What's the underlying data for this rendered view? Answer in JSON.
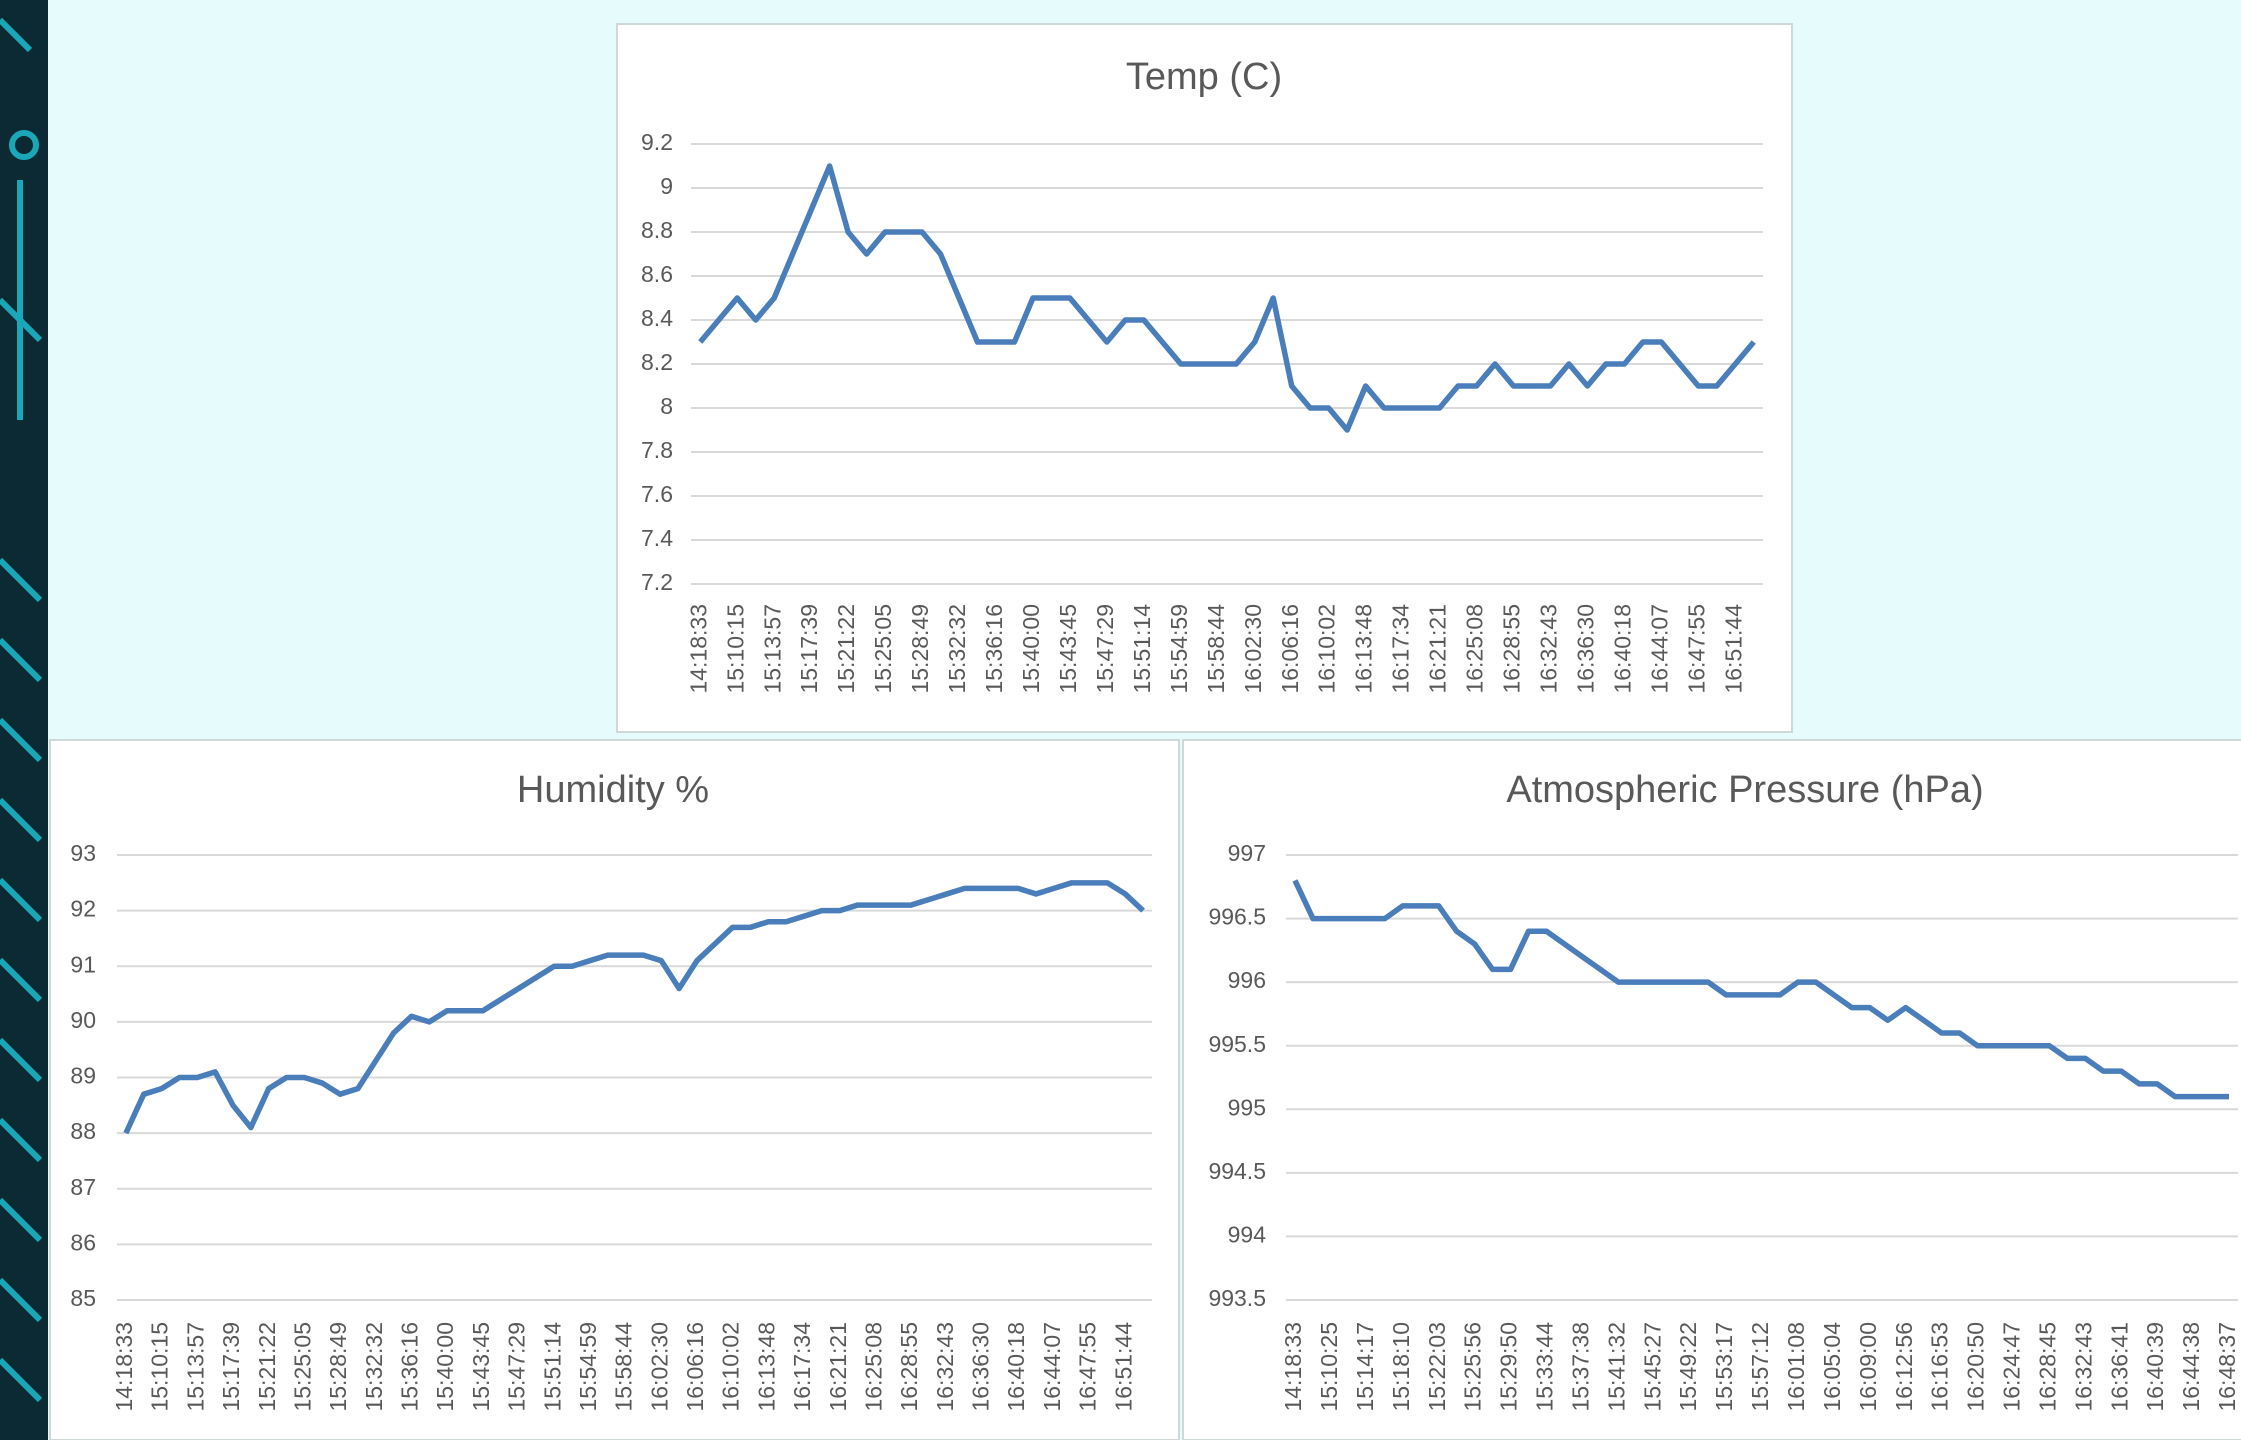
{
  "chart_data": [
    {
      "type": "line",
      "title": "Temp (C)",
      "color": "#4a7ebb",
      "grid": true,
      "categories": [
        "14:18:33",
        null,
        "15:10:15",
        null,
        "15:13:57",
        null,
        "15:17:39",
        null,
        "15:21:22",
        null,
        "15:25:05",
        null,
        "15:28:49",
        null,
        "15:32:32",
        null,
        "15:36:16",
        null,
        "15:40:00",
        null,
        "15:43:45",
        null,
        "15:47:29",
        null,
        "15:51:14",
        null,
        "15:54:59",
        null,
        "15:58:44",
        null,
        "16:02:30",
        null,
        "16:06:16",
        null,
        "16:10:02",
        null,
        "16:13:48",
        null,
        "16:17:34",
        null,
        "16:21:21",
        null,
        "16:25:08",
        null,
        "16:28:55",
        null,
        "16:32:43",
        null,
        "16:36:30",
        null,
        "16:40:18",
        null,
        "16:44:07",
        null,
        "16:47:55",
        null,
        "16:51:44",
        null
      ],
      "values": [
        8.3,
        8.4,
        8.5,
        8.4,
        8.5,
        8.7,
        8.9,
        9.1,
        8.8,
        8.7,
        8.8,
        8.8,
        8.8,
        8.7,
        8.5,
        8.3,
        8.3,
        8.3,
        8.5,
        8.5,
        8.5,
        8.4,
        8.3,
        8.4,
        8.4,
        8.3,
        8.2,
        8.2,
        8.2,
        8.2,
        8.3,
        8.5,
        8.1,
        8,
        8,
        7.9,
        8.1,
        8,
        8,
        8,
        8,
        8.1,
        8.1,
        8.2,
        8.1,
        8.1,
        8.1,
        8.2,
        8.1,
        8.2,
        8.2,
        8.3,
        8.3,
        8.2,
        8.1,
        8.1,
        8.2,
        8.3
      ],
      "ylim": [
        7.2,
        9.2
      ],
      "yticks": [
        7.2,
        7.4,
        7.6,
        7.8,
        8,
        8.2,
        8.4,
        8.6,
        8.8,
        9,
        9.2
      ]
    },
    {
      "type": "line",
      "title": "Humidity %",
      "color": "#4a7ebb",
      "grid": true,
      "categories": [
        "14:18:33",
        null,
        "15:10:15",
        null,
        "15:13:57",
        null,
        "15:17:39",
        null,
        "15:21:22",
        null,
        "15:25:05",
        null,
        "15:28:49",
        null,
        "15:32:32",
        null,
        "15:36:16",
        null,
        "15:40:00",
        null,
        "15:43:45",
        null,
        "15:47:29",
        null,
        "15:51:14",
        null,
        "15:54:59",
        null,
        "15:58:44",
        null,
        "16:02:30",
        null,
        "16:06:16",
        null,
        "16:10:02",
        null,
        "16:13:48",
        null,
        "16:17:34",
        null,
        "16:21:21",
        null,
        "16:25:08",
        null,
        "16:28:55",
        null,
        "16:32:43",
        null,
        "16:36:30",
        null,
        "16:40:18",
        null,
        "16:44:07",
        null,
        "16:47:55",
        null,
        "16:51:44",
        null
      ],
      "values": [
        88,
        88.7,
        88.8,
        89,
        89,
        89.1,
        88.5,
        88.1,
        88.8,
        89,
        89,
        88.9,
        88.7,
        88.8,
        89.3,
        89.8,
        90.1,
        90,
        90.2,
        90.2,
        90.2,
        90.4,
        90.6,
        90.8,
        91,
        91,
        91.1,
        91.2,
        91.2,
        91.2,
        91.1,
        90.6,
        91.1,
        91.4,
        91.7,
        91.7,
        91.8,
        91.8,
        91.9,
        92,
        92,
        92.1,
        92.1,
        92.1,
        92.1,
        92.2,
        92.3,
        92.4,
        92.4,
        92.4,
        92.4,
        92.3,
        92.4,
        92.5,
        92.5,
        92.5,
        92.3,
        92
      ],
      "ylim": [
        85,
        93
      ],
      "yticks": [
        85,
        86,
        87,
        88,
        89,
        90,
        91,
        92,
        93
      ]
    },
    {
      "type": "line",
      "title": "Atmospheric Pressure (hPa)",
      "color": "#4a7ebb",
      "grid": true,
      "categories": [
        "14:18:33",
        null,
        "15:10:25",
        null,
        "15:14:17",
        null,
        "15:18:10",
        null,
        "15:22:03",
        null,
        "15:25:56",
        null,
        "15:29:50",
        null,
        "15:33:44",
        null,
        "15:37:38",
        null,
        "15:41:32",
        null,
        "15:45:27",
        null,
        "15:49:22",
        null,
        "15:53:17",
        null,
        "15:57:12",
        null,
        "16:01:08",
        null,
        "16:05:04",
        null,
        "16:09:00",
        null,
        "16:12:56",
        null,
        "16:16:53",
        null,
        "16:20:50",
        null,
        "16:24:47",
        null,
        "16:28:45",
        null,
        "16:32:43",
        null,
        "16:36:41",
        null,
        "16:40:39",
        null,
        "16:44:38",
        null,
        "16:48:37"
      ],
      "values": [
        996.8,
        996.5,
        996.5,
        996.5,
        996.5,
        996.5,
        996.6,
        996.6,
        996.6,
        996.4,
        996.3,
        996.1,
        996.1,
        996.4,
        996.4,
        996.3,
        996.2,
        996.1,
        996,
        996,
        996,
        996,
        996,
        996,
        995.9,
        995.9,
        995.9,
        995.9,
        996,
        996,
        995.9,
        995.8,
        995.8,
        995.7,
        995.8,
        995.7,
        995.6,
        995.6,
        995.5,
        995.5,
        995.5,
        995.5,
        995.5,
        995.4,
        995.4,
        995.3,
        995.3,
        995.2,
        995.2,
        995.1,
        995.1,
        995.1,
        995.1
      ],
      "ylim": [
        993.5,
        997
      ],
      "yticks": [
        993.5,
        994,
        994.5,
        995,
        995.5,
        996,
        996.5,
        997
      ]
    }
  ]
}
